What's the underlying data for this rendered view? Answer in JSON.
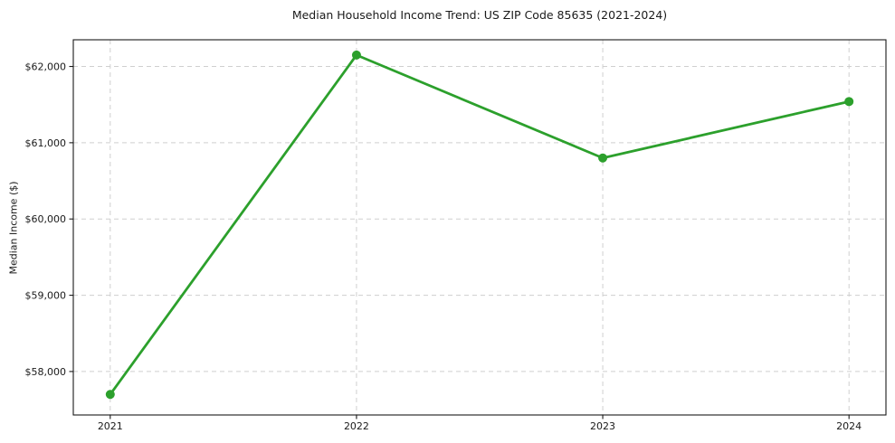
{
  "chart": {
    "title": "Median Household Income Trend: US ZIP Code 85635 (2021-2024)",
    "ylabel": "Median Income ($)"
  },
  "chart_data": {
    "type": "line",
    "title": "Median Household Income Trend: US ZIP Code 85635 (2021-2024)",
    "xlabel": "",
    "ylabel": "Median Income ($)",
    "categories": [
      "2021",
      "2022",
      "2023",
      "2024"
    ],
    "x": [
      2021,
      2022,
      2023,
      2024
    ],
    "series": [
      {
        "name": "Median Household Income",
        "values": [
          57700,
          62150,
          60800,
          61540
        ]
      }
    ],
    "xlim": [
      2020.85,
      2024.15
    ],
    "ylim": [
      57430,
      62350
    ],
    "xticks": [
      2021,
      2022,
      2023,
      2024
    ],
    "xtick_labels": [
      "2021",
      "2022",
      "2023",
      "2024"
    ],
    "yticks": [
      58000,
      59000,
      60000,
      61000,
      62000
    ],
    "ytick_labels": [
      "$58,000",
      "$59,000",
      "$60,000",
      "$61,000",
      "$62,000"
    ],
    "grid": true,
    "grid_style": "dashed",
    "legend_position": "none",
    "style": {
      "line_color": "#2ca02c",
      "marker": "circle",
      "marker_radius": 5,
      "line_width": 2.8,
      "grid_color": "#cfcfcf",
      "spine_color": "#1a1a1a",
      "text_color": "#1a1a1a",
      "background": "#ffffff"
    }
  }
}
